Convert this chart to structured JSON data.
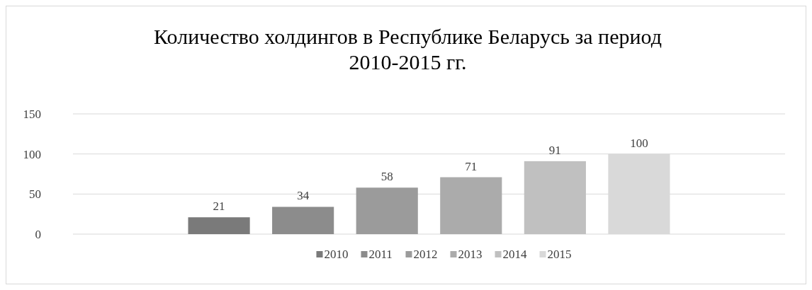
{
  "chart_data": {
    "type": "bar",
    "title": "Количество холдингов в Республике Беларусь за период\n2010-2015  гг.",
    "categories": [
      null
    ],
    "series": [
      {
        "name": "2010",
        "color": "#7a7a7a",
        "values": [
          21
        ]
      },
      {
        "name": "2011",
        "color": "#8c8c8c",
        "values": [
          34
        ]
      },
      {
        "name": "2012",
        "color": "#9b9b9b",
        "values": [
          58
        ]
      },
      {
        "name": "2013",
        "color": "#ababab",
        "values": [
          71
        ]
      },
      {
        "name": "2014",
        "color": "#c0c0c0",
        "values": [
          91
        ]
      },
      {
        "name": "2015",
        "color": "#d9d9d9",
        "values": [
          100
        ]
      }
    ],
    "ylim": [
      0,
      150
    ],
    "yticks": [
      0,
      50,
      100,
      150
    ],
    "grid": "y",
    "legend": "bottom",
    "data_labels": true
  }
}
